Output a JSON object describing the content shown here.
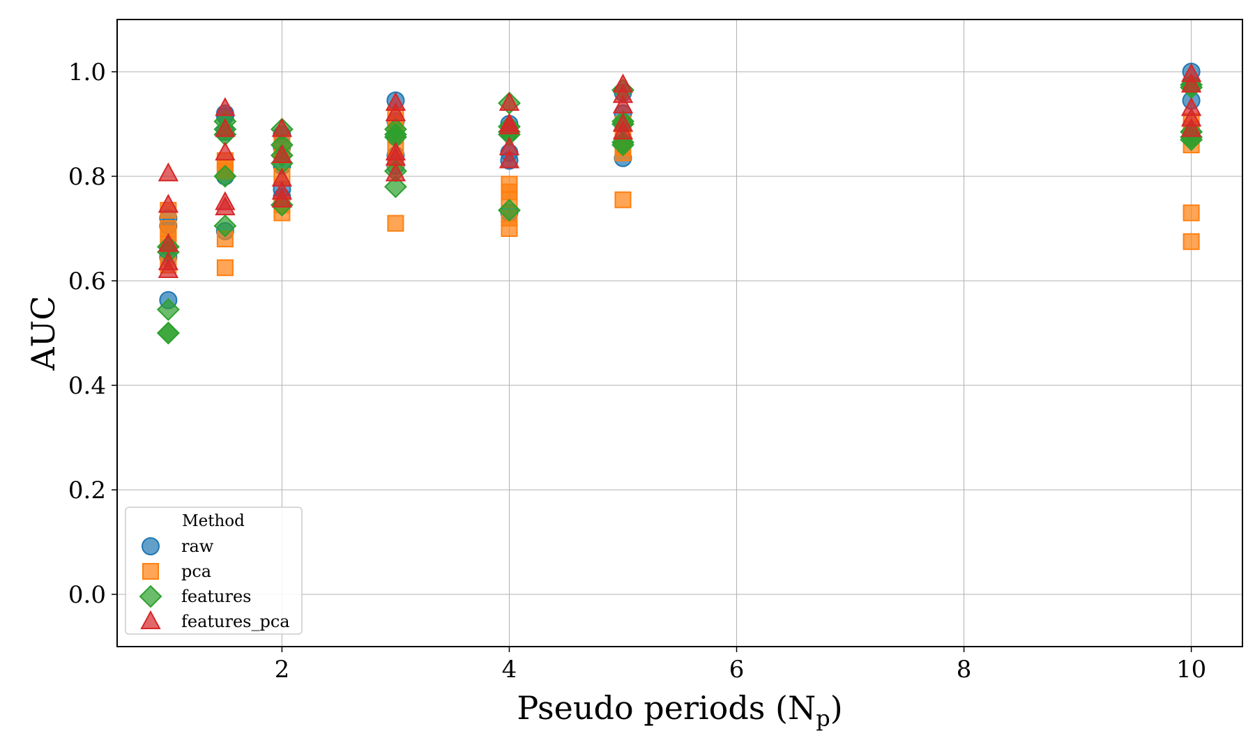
{
  "chart_data": {
    "type": "scatter",
    "title": "",
    "xlabel": "Pseudo periods (N",
    "xlabel_subscript": "p",
    "xlabel_suffix": ")",
    "ylabel": "AUC",
    "xlim": [
      0.55,
      10.45
    ],
    "ylim": [
      -0.1,
      1.1
    ],
    "xticks": [
      2,
      4,
      6,
      8,
      10
    ],
    "yticks": [
      0.0,
      0.2,
      0.4,
      0.6,
      0.8,
      1.0
    ],
    "xtick_labels": [
      "2",
      "4",
      "6",
      "8",
      "10"
    ],
    "ytick_labels": [
      "0.0",
      "0.2",
      "0.4",
      "0.6",
      "0.8",
      "1.0"
    ],
    "grid": true,
    "legend": {
      "title": "Method",
      "placement": "lower-left"
    },
    "series": [
      {
        "name": "raw",
        "marker": "circle",
        "color": "#1f77b4",
        "points": [
          {
            "x": 1,
            "y": 0.563
          },
          {
            "x": 1,
            "y": 0.72
          },
          {
            "x": 1,
            "y": 0.705
          },
          {
            "x": 1,
            "y": 0.665
          },
          {
            "x": 1,
            "y": 0.645
          },
          {
            "x": 1.5,
            "y": 0.92
          },
          {
            "x": 1.5,
            "y": 0.915
          },
          {
            "x": 1.5,
            "y": 0.885
          },
          {
            "x": 1.5,
            "y": 0.8
          },
          {
            "x": 1.5,
            "y": 0.695
          },
          {
            "x": 2,
            "y": 0.88
          },
          {
            "x": 2,
            "y": 0.855
          },
          {
            "x": 2,
            "y": 0.82
          },
          {
            "x": 2,
            "y": 0.775
          },
          {
            "x": 2,
            "y": 0.76
          },
          {
            "x": 3,
            "y": 0.945
          },
          {
            "x": 3,
            "y": 0.905
          },
          {
            "x": 3,
            "y": 0.875
          },
          {
            "x": 3,
            "y": 0.84
          },
          {
            "x": 3,
            "y": 0.82
          },
          {
            "x": 4,
            "y": 0.9
          },
          {
            "x": 4,
            "y": 0.885
          },
          {
            "x": 4,
            "y": 0.845
          },
          {
            "x": 4,
            "y": 0.83
          },
          {
            "x": 4,
            "y": 0.73
          },
          {
            "x": 5,
            "y": 0.96
          },
          {
            "x": 5,
            "y": 0.92
          },
          {
            "x": 5,
            "y": 0.9
          },
          {
            "x": 5,
            "y": 0.865
          },
          {
            "x": 5,
            "y": 0.835
          },
          {
            "x": 10,
            "y": 1.0
          },
          {
            "x": 10,
            "y": 0.975
          },
          {
            "x": 10,
            "y": 0.945
          },
          {
            "x": 10,
            "y": 0.885
          },
          {
            "x": 10,
            "y": 0.875
          }
        ]
      },
      {
        "name": "pca",
        "marker": "square",
        "color": "#ff7f0e",
        "points": [
          {
            "x": 1,
            "y": 0.735
          },
          {
            "x": 1,
            "y": 0.7
          },
          {
            "x": 1,
            "y": 0.69
          },
          {
            "x": 1,
            "y": 0.67
          },
          {
            "x": 1,
            "y": 0.63
          },
          {
            "x": 1.5,
            "y": 0.83
          },
          {
            "x": 1.5,
            "y": 0.815
          },
          {
            "x": 1.5,
            "y": 0.81
          },
          {
            "x": 1.5,
            "y": 0.68
          },
          {
            "x": 1.5,
            "y": 0.625
          },
          {
            "x": 2,
            "y": 0.865
          },
          {
            "x": 2,
            "y": 0.84
          },
          {
            "x": 2,
            "y": 0.8
          },
          {
            "x": 2,
            "y": 0.745
          },
          {
            "x": 2,
            "y": 0.73
          },
          {
            "x": 3,
            "y": 0.915
          },
          {
            "x": 3,
            "y": 0.9
          },
          {
            "x": 3,
            "y": 0.86
          },
          {
            "x": 3,
            "y": 0.83
          },
          {
            "x": 3,
            "y": 0.71
          },
          {
            "x": 4,
            "y": 0.785
          },
          {
            "x": 4,
            "y": 0.77
          },
          {
            "x": 4,
            "y": 0.755
          },
          {
            "x": 4,
            "y": 0.72
          },
          {
            "x": 4,
            "y": 0.7
          },
          {
            "x": 5,
            "y": 0.9
          },
          {
            "x": 5,
            "y": 0.87
          },
          {
            "x": 5,
            "y": 0.855
          },
          {
            "x": 5,
            "y": 0.845
          },
          {
            "x": 5,
            "y": 0.755
          },
          {
            "x": 10,
            "y": 0.905
          },
          {
            "x": 10,
            "y": 0.89
          },
          {
            "x": 10,
            "y": 0.86
          },
          {
            "x": 10,
            "y": 0.73
          },
          {
            "x": 10,
            "y": 0.675
          }
        ]
      },
      {
        "name": "features",
        "marker": "diamond",
        "color": "#2ca02c",
        "points": [
          {
            "x": 1,
            "y": 0.665
          },
          {
            "x": 1,
            "y": 0.655
          },
          {
            "x": 1,
            "y": 0.545
          },
          {
            "x": 1,
            "y": 0.5
          },
          {
            "x": 1,
            "y": 0.5
          },
          {
            "x": 1.5,
            "y": 0.905
          },
          {
            "x": 1.5,
            "y": 0.89
          },
          {
            "x": 1.5,
            "y": 0.88
          },
          {
            "x": 1.5,
            "y": 0.8
          },
          {
            "x": 1.5,
            "y": 0.705
          },
          {
            "x": 2,
            "y": 0.89
          },
          {
            "x": 2,
            "y": 0.86
          },
          {
            "x": 2,
            "y": 0.84
          },
          {
            "x": 2,
            "y": 0.825
          },
          {
            "x": 2,
            "y": 0.745
          },
          {
            "x": 3,
            "y": 0.89
          },
          {
            "x": 3,
            "y": 0.88
          },
          {
            "x": 3,
            "y": 0.81
          },
          {
            "x": 3,
            "y": 0.78
          },
          {
            "x": 3,
            "y": 0.875
          },
          {
            "x": 4,
            "y": 0.94
          },
          {
            "x": 4,
            "y": 0.895
          },
          {
            "x": 4,
            "y": 0.885
          },
          {
            "x": 4,
            "y": 0.88
          },
          {
            "x": 4,
            "y": 0.735
          },
          {
            "x": 5,
            "y": 0.965
          },
          {
            "x": 5,
            "y": 0.905
          },
          {
            "x": 5,
            "y": 0.9
          },
          {
            "x": 5,
            "y": 0.865
          },
          {
            "x": 5,
            "y": 0.86
          },
          {
            "x": 10,
            "y": 0.975
          },
          {
            "x": 10,
            "y": 0.97
          },
          {
            "x": 10,
            "y": 0.885
          },
          {
            "x": 10,
            "y": 0.875
          },
          {
            "x": 10,
            "y": 0.87
          }
        ]
      },
      {
        "name": "features_pca",
        "marker": "triangle",
        "color": "#d62728",
        "points": [
          {
            "x": 1,
            "y": 0.805
          },
          {
            "x": 1,
            "y": 0.745
          },
          {
            "x": 1,
            "y": 0.67
          },
          {
            "x": 1,
            "y": 0.635
          },
          {
            "x": 1,
            "y": 0.62
          },
          {
            "x": 1.5,
            "y": 0.93
          },
          {
            "x": 1.5,
            "y": 0.89
          },
          {
            "x": 1.5,
            "y": 0.845
          },
          {
            "x": 1.5,
            "y": 0.75
          },
          {
            "x": 1.5,
            "y": 0.74
          },
          {
            "x": 2,
            "y": 0.89
          },
          {
            "x": 2,
            "y": 0.84
          },
          {
            "x": 2,
            "y": 0.795
          },
          {
            "x": 2,
            "y": 0.77
          },
          {
            "x": 2,
            "y": 0.755
          },
          {
            "x": 3,
            "y": 0.94
          },
          {
            "x": 3,
            "y": 0.92
          },
          {
            "x": 3,
            "y": 0.845
          },
          {
            "x": 3,
            "y": 0.835
          },
          {
            "x": 3,
            "y": 0.805
          },
          {
            "x": 4,
            "y": 0.94
          },
          {
            "x": 4,
            "y": 0.9
          },
          {
            "x": 4,
            "y": 0.895
          },
          {
            "x": 4,
            "y": 0.855
          },
          {
            "x": 4,
            "y": 0.83
          },
          {
            "x": 5,
            "y": 0.975
          },
          {
            "x": 5,
            "y": 0.955
          },
          {
            "x": 5,
            "y": 0.935
          },
          {
            "x": 5,
            "y": 0.9
          },
          {
            "x": 5,
            "y": 0.885
          },
          {
            "x": 10,
            "y": 0.995
          },
          {
            "x": 10,
            "y": 0.975
          },
          {
            "x": 10,
            "y": 0.93
          },
          {
            "x": 10,
            "y": 0.91
          },
          {
            "x": 10,
            "y": 0.89
          }
        ]
      }
    ]
  }
}
